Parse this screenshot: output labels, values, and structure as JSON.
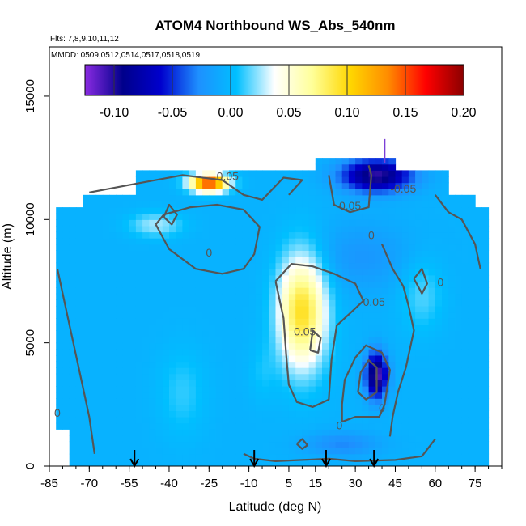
{
  "chart_data": {
    "type": "heatmap",
    "title": "ATOM4 Northbound WS_Abs_540nm",
    "flights_label": "Flts: 7,8,9,10,11,12",
    "dates_label": "MMDD: 0509,0512,0514,0517,0518,0519",
    "xlabel": "Latitude (deg N)",
    "ylabel": "Altitude (m)",
    "xlim": [
      -85,
      85
    ],
    "ylim": [
      0,
      17000
    ],
    "xticks": [
      -85,
      -70,
      -55,
      -40,
      -25,
      -10,
      5,
      15,
      30,
      45,
      60,
      75
    ],
    "xtick_labels": [
      "-85",
      "-70",
      "-55",
      "-40",
      "-25",
      "-10",
      "5",
      "15",
      "30",
      "45",
      "60",
      "75"
    ],
    "yticks": [
      0,
      5000,
      10000,
      15000
    ],
    "ytick_labels": [
      "0",
      "5000",
      "10000",
      "15000"
    ],
    "colorbar": {
      "range": [
        -0.125,
        0.2
      ],
      "ticks": [
        -0.1,
        -0.05,
        0.0,
        0.05,
        0.1,
        0.15,
        0.2
      ],
      "tick_labels": [
        "-0.10",
        "-0.05",
        "0.00",
        "0.05",
        "0.10",
        "0.15",
        "0.20"
      ],
      "colors": [
        "#8a2be2",
        "#00008b",
        "#0000cd",
        "#1e90ff",
        "#00bfff",
        "#ffffff",
        "#ffff99",
        "#ffd700",
        "#ff8c00",
        "#ff0000",
        "#8b0000"
      ]
    },
    "contour_labels": [
      {
        "text": "0",
        "x": -82,
        "y": 2000
      },
      {
        "text": "0",
        "x": -25,
        "y": 8500
      },
      {
        "text": "0.05",
        "x": -18,
        "y": 11600
      },
      {
        "text": "0.05",
        "x": 28,
        "y": 10400
      },
      {
        "text": "0",
        "x": 36,
        "y": 9200
      },
      {
        "text": "-0.05",
        "x": 48,
        "y": 11100
      },
      {
        "text": "0.05",
        "x": 11,
        "y": 5300
      },
      {
        "text": "0.05",
        "x": 37,
        "y": 6500
      },
      {
        "text": "0",
        "x": 24,
        "y": 1500
      },
      {
        "text": "0",
        "x": 62,
        "y": 7300
      },
      {
        "text": "0",
        "x": 40,
        "y": 2200
      }
    ],
    "profile_markers": [
      {
        "type": "arrow",
        "lat": -53
      },
      {
        "type": "arrow",
        "lat": -8
      },
      {
        "type": "arrow",
        "lat": 19
      },
      {
        "type": "arrow",
        "lat": 37
      },
      {
        "type": "tick",
        "lat": 41,
        "alt": 13000
      }
    ]
  }
}
